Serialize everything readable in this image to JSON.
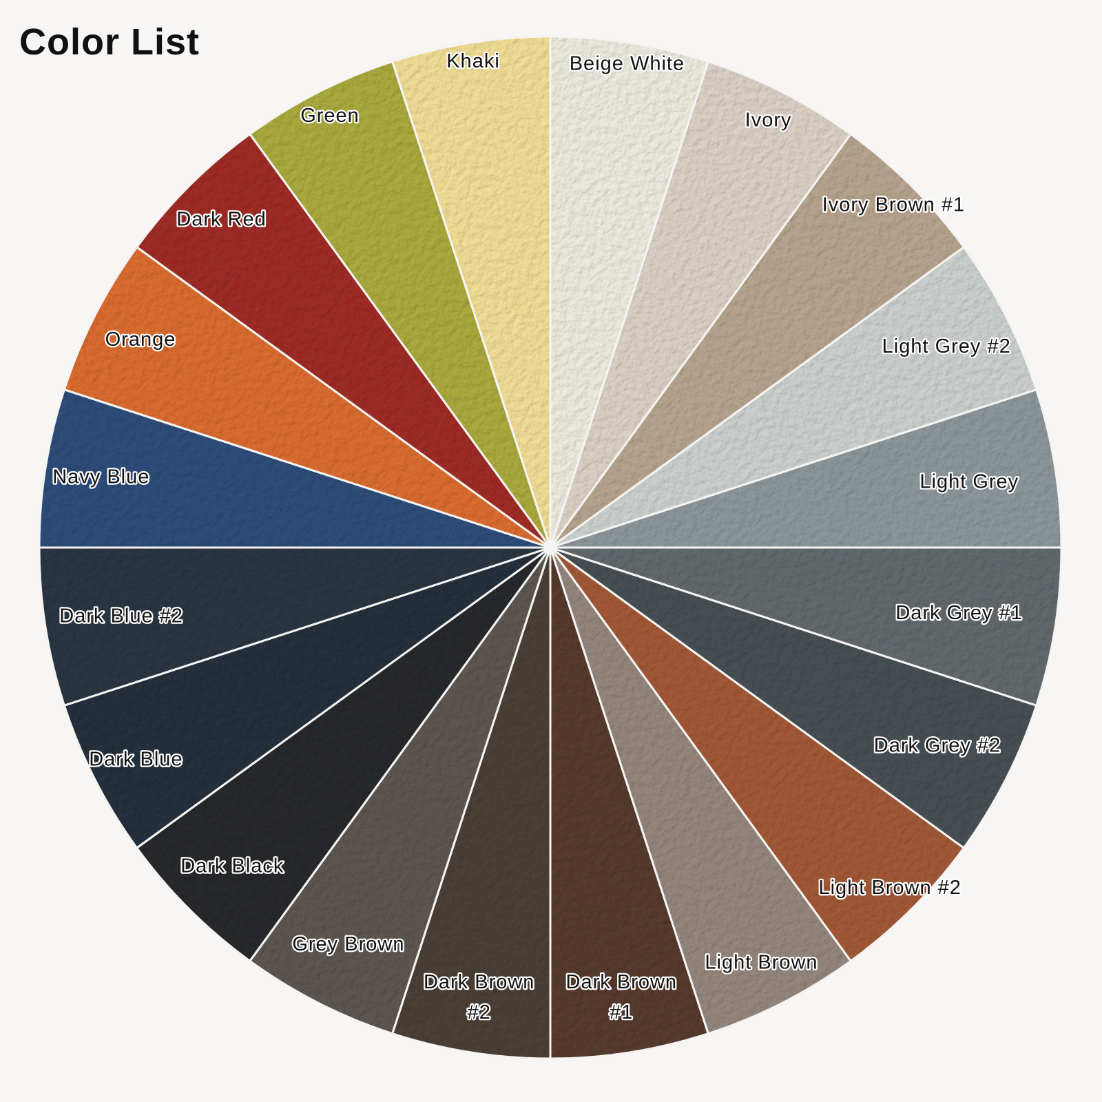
{
  "title": "Color List",
  "colors": {
    "background": "#f7f6f5",
    "label_text": "#121212",
    "label_outline": "#ffffff",
    "wedge_gap": "#f5f4f2"
  },
  "chart_data": {
    "type": "pie",
    "title": "Color List",
    "legend_position": "labels-on-slices",
    "slice_degrees": 18,
    "start_angle_deg": -90,
    "direction": "clockwise",
    "segments": [
      {
        "label": "Beige White",
        "value": 18,
        "color": "#eae8dd",
        "label_radius_fraction": 0.96
      },
      {
        "label": "Ivory",
        "value": 18,
        "color": "#d8cec2",
        "label_radius_fraction": 0.94
      },
      {
        "label": "Ivory Brown #1",
        "value": 18,
        "color": "#b4a28c",
        "label_radius_fraction": 0.95
      },
      {
        "label": "Light Grey #2",
        "value": 18,
        "color": "#c9cecb",
        "label_radius_fraction": 0.87
      },
      {
        "label": "Light Grey",
        "value": 18,
        "color": "#8b9599",
        "label_radius_fraction": 0.83
      },
      {
        "label": "Dark Grey #1",
        "value": 18,
        "color": "#61686b",
        "label_radius_fraction": 0.81
      },
      {
        "label": "Dark Grey #2",
        "value": 18,
        "color": "#464f53",
        "label_radius_fraction": 0.85
      },
      {
        "label": "Light Brown #2",
        "value": 18,
        "color": "#a05836",
        "label_radius_fraction": 0.94
      },
      {
        "label": "Light Brown",
        "value": 18,
        "color": "#92857b",
        "label_radius_fraction": 0.91
      },
      {
        "label": "Dark Brown #1",
        "value": 18,
        "color": "#553a2d",
        "label_radius_fraction": 0.89,
        "lines": [
          "Dark Brown",
          "#1"
        ]
      },
      {
        "label": "Dark Brown #2",
        "value": 18,
        "color": "#4a3f35",
        "label_radius_fraction": 0.89,
        "lines": [
          "Dark Brown",
          "#2"
        ]
      },
      {
        "label": "Grey Brown",
        "value": 18,
        "color": "#5d5650",
        "label_radius_fraction": 0.87
      },
      {
        "label": "Dark Black",
        "value": 18,
        "color": "#27292b",
        "label_radius_fraction": 0.88
      },
      {
        "label": "Dark Blue",
        "value": 18,
        "color": "#25303b",
        "label_radius_fraction": 0.91
      },
      {
        "label": "Dark Blue #2",
        "value": 18,
        "color": "#2a3541",
        "label_radius_fraction": 0.85
      },
      {
        "label": "Navy Blue",
        "value": 18,
        "color": "#2d4c78",
        "label_radius_fraction": 0.89
      },
      {
        "label": "Orange",
        "value": 18,
        "color": "#d86b2f",
        "label_radius_fraction": 0.9
      },
      {
        "label": "Dark Red",
        "value": 18,
        "color": "#9d2c25",
        "label_radius_fraction": 0.91
      },
      {
        "label": "Green",
        "value": 18,
        "color": "#a8a83d",
        "label_radius_fraction": 0.95
      },
      {
        "label": "Khaki",
        "value": 18,
        "color": "#eeda93",
        "label_radius_fraction": 0.965
      }
    ]
  }
}
